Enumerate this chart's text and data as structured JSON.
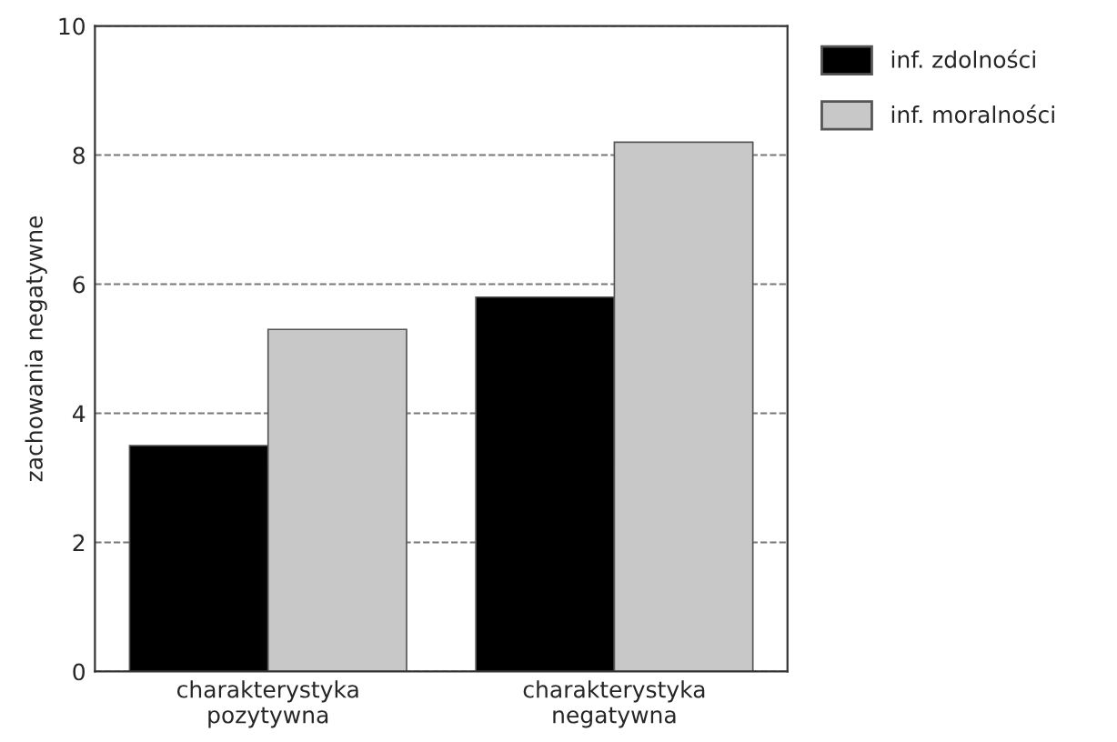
{
  "chart_data": {
    "type": "bar",
    "ylabel": "zachowania negatywne",
    "categories": [
      "charakterystyka\npozytywna",
      "charakterystyka\nnegatywna"
    ],
    "series": [
      {
        "name": "inf. zdolności",
        "color": "#000000",
        "values": [
          3.5,
          5.8
        ]
      },
      {
        "name": "inf. moralności",
        "color": "#c8c8c8",
        "values": [
          5.3,
          8.2
        ]
      }
    ],
    "ylim": [
      0,
      10
    ],
    "yticks": [
      0,
      2,
      4,
      6,
      8,
      10
    ],
    "grid": "y",
    "legend": "top right"
  }
}
